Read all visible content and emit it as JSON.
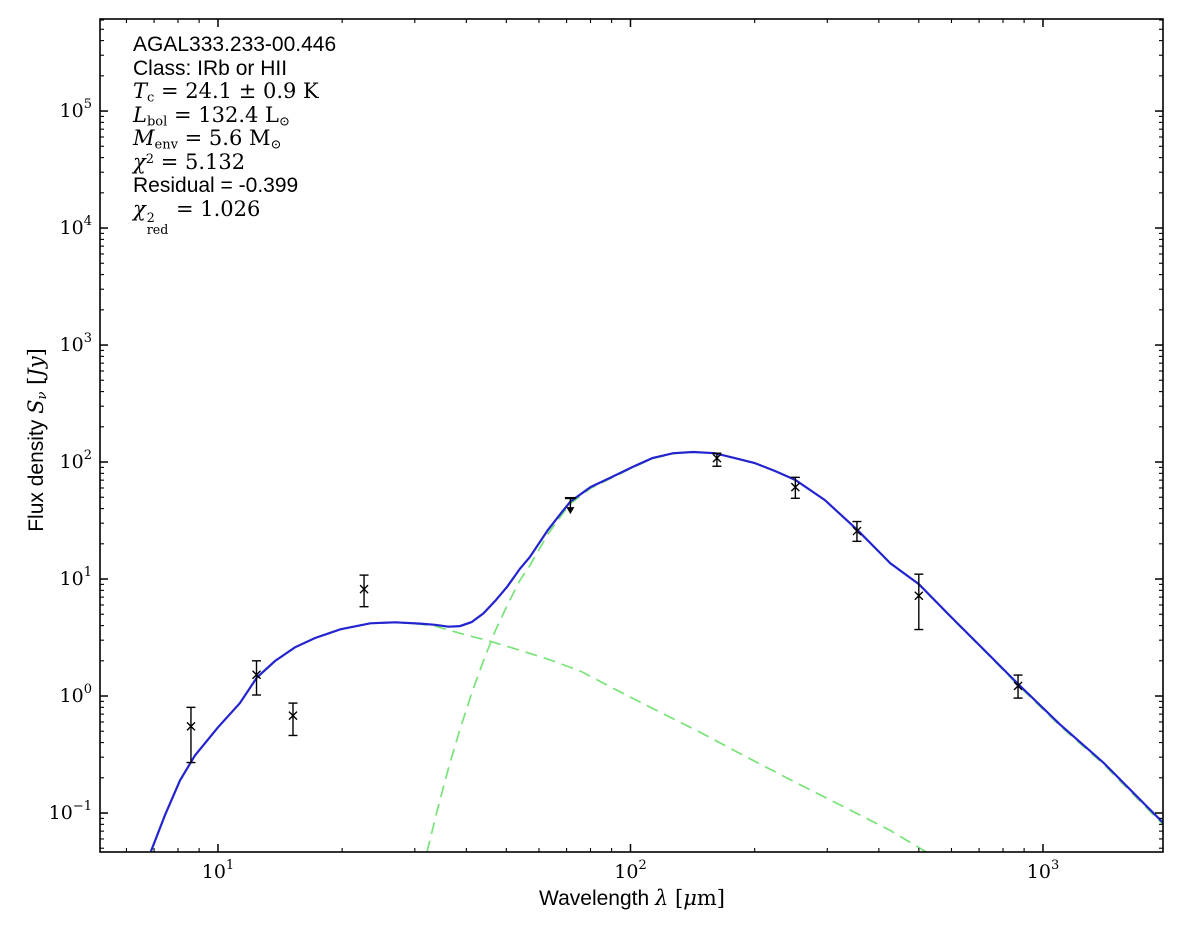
{
  "annotation": {
    "source": "AGAL333.233-00.446",
    "class_line": "Class: IRb or HII",
    "tc": {
      "sym": "T",
      "sub": "c",
      "rest": " = 24.1 ± 0.9 K"
    },
    "lbol": {
      "sym": "L",
      "sub": "bol",
      "rest": " = 132.4 L",
      "rest_sub": "⊙"
    },
    "menv": {
      "sym": "M",
      "sub": "env",
      "rest": " = 5.6 M",
      "rest_sub": "⊙"
    },
    "chi2": {
      "sym": "χ",
      "sup": "2",
      "rest": " = 5.132"
    },
    "residual": "Residual = -0.399",
    "chi2red": {
      "sym": "χ",
      "sup": "2",
      "sub": "red",
      "rest": " = 1.026"
    }
  },
  "axes": {
    "xlabel": {
      "prefix": "Wavelength ",
      "sym": "λ",
      "open": " [",
      "mu": "μ",
      "rest": "m]"
    },
    "ylabel": {
      "prefix": "Flux density ",
      "sym": "S",
      "sym_sub": "ν",
      "open": " [",
      "unit": "Jy",
      "close": "]"
    }
  },
  "chart_data": {
    "type": "line",
    "title": "",
    "xlabel": "Wavelength λ [μm]",
    "ylabel": "Flux density S_ν [Jy]",
    "xscale": "log",
    "yscale": "log",
    "xlim": [
      5.176,
      1954
    ],
    "ylim": [
      0.04642,
      612000
    ],
    "grid": false,
    "legend": "none",
    "x_tick_exponents": [
      1,
      2,
      3
    ],
    "y_tick_exponents": [
      -1,
      0,
      1,
      2,
      3,
      4,
      5
    ],
    "colors": {
      "total": "#2323cf",
      "component": "#79e279",
      "data": "#000000",
      "axis": "#000000"
    },
    "series": [
      {
        "name": "total-model",
        "style": "solid",
        "color": "#2323cf",
        "points": [
          [
            6.86,
            0.046
          ],
          [
            7.44,
            0.096
          ],
          [
            8.09,
            0.19
          ],
          [
            8.79,
            0.31
          ],
          [
            10,
            0.54
          ],
          [
            11.3,
            0.87
          ],
          [
            12.43,
            1.44
          ],
          [
            13.75,
            1.99
          ],
          [
            15.37,
            2.61
          ],
          [
            17.2,
            3.13
          ],
          [
            19.8,
            3.72
          ],
          [
            23.4,
            4.18
          ],
          [
            26.9,
            4.27
          ],
          [
            30.9,
            4.16
          ],
          [
            33.6,
            4.06
          ],
          [
            36.2,
            3.91
          ],
          [
            38.6,
            3.96
          ],
          [
            41.2,
            4.28
          ],
          [
            44,
            5.08
          ],
          [
            47,
            6.5
          ],
          [
            50.3,
            8.65
          ],
          [
            54,
            12.3
          ],
          [
            57,
            15.4
          ],
          [
            63,
            26.1
          ],
          [
            68,
            36.9
          ],
          [
            71.5,
            45.9
          ],
          [
            80,
            61.1
          ],
          [
            90,
            74.4
          ],
          [
            101,
            90.5
          ],
          [
            113,
            108.1
          ],
          [
            127,
            119
          ],
          [
            142,
            121.9
          ],
          [
            160,
            119
          ],
          [
            179,
            108.1
          ],
          [
            200,
            98.1
          ],
          [
            224,
            83.8
          ],
          [
            251,
            70.2
          ],
          [
            296,
            47.3
          ],
          [
            355,
            26.2
          ],
          [
            427,
            13.6
          ],
          [
            500,
            9.05
          ],
          [
            600,
            4.7
          ],
          [
            730,
            2.36
          ],
          [
            870,
            1.27
          ],
          [
            1100,
            0.57
          ],
          [
            1400,
            0.27
          ],
          [
            1965,
            0.081
          ]
        ]
      },
      {
        "name": "cold-component",
        "style": "dashed",
        "color": "#79e279",
        "points": [
          [
            32.1,
            0.046
          ],
          [
            34,
            0.105
          ],
          [
            36.2,
            0.24
          ],
          [
            38.6,
            0.52
          ],
          [
            41.2,
            1.05
          ],
          [
            44,
            2.0
          ],
          [
            47,
            3.6
          ],
          [
            50.3,
            6.0
          ],
          [
            54,
            9.8
          ],
          [
            57,
            13
          ],
          [
            63,
            24
          ],
          [
            68,
            35
          ],
          [
            71.5,
            44
          ],
          [
            80,
            59.5
          ],
          [
            90,
            73
          ],
          [
            101,
            89.5
          ],
          [
            113,
            107
          ],
          [
            127,
            118
          ],
          [
            142,
            121.4
          ],
          [
            160,
            118.6
          ],
          [
            179,
            107.7
          ],
          [
            200,
            97.8
          ],
          [
            224,
            83.6
          ],
          [
            251,
            70
          ],
          [
            296,
            47.2
          ],
          [
            355,
            26.1
          ],
          [
            427,
            13.5
          ],
          [
            500,
            9.0
          ],
          [
            600,
            4.65
          ],
          [
            730,
            2.33
          ],
          [
            870,
            1.24
          ],
          [
            1100,
            0.555
          ],
          [
            1400,
            0.263
          ],
          [
            1965,
            0.078
          ]
        ]
      },
      {
        "name": "warm-component",
        "style": "dashed",
        "color": "#79e279",
        "points": [
          [
            6.86,
            0.046
          ],
          [
            7.44,
            0.096
          ],
          [
            8.09,
            0.19
          ],
          [
            8.79,
            0.31
          ],
          [
            10,
            0.54
          ],
          [
            11.3,
            0.87
          ],
          [
            12.43,
            1.44
          ],
          [
            13.75,
            1.99
          ],
          [
            15.37,
            2.61
          ],
          [
            17.2,
            3.13
          ],
          [
            19.8,
            3.72
          ],
          [
            23.4,
            4.18
          ],
          [
            26.9,
            4.27
          ],
          [
            30.9,
            4.12
          ],
          [
            33.6,
            3.96
          ],
          [
            38.7,
            3.43
          ],
          [
            45.6,
            2.94
          ],
          [
            54,
            2.46
          ],
          [
            63.9,
            2.03
          ],
          [
            75.5,
            1.64
          ],
          [
            87.7,
            1.24
          ],
          [
            111,
            0.81
          ],
          [
            147.5,
            0.49
          ],
          [
            195,
            0.29
          ],
          [
            257.5,
            0.175
          ],
          [
            339,
            0.107
          ],
          [
            426,
            0.071
          ],
          [
            524,
            0.046
          ]
        ]
      }
    ],
    "data_points": [
      {
        "lambda": 8.6,
        "flux": 0.55,
        "lo": 0.27,
        "hi": 0.8
      },
      {
        "lambda": 12.4,
        "flux": 1.52,
        "lo": 1.02,
        "hi": 2.0
      },
      {
        "lambda": 15.2,
        "flux": 0.68,
        "lo": 0.46,
        "hi": 0.87
      },
      {
        "lambda": 22.6,
        "flux": 8.2,
        "lo": 5.8,
        "hi": 10.8
      },
      {
        "lambda": 71.5,
        "flux": 49.2,
        "lo": 36.6,
        "hi": 49.2,
        "upper_limit": true
      },
      {
        "lambda": 162,
        "flux": 108,
        "lo": 92,
        "hi": 119
      },
      {
        "lambda": 251,
        "flux": 61,
        "lo": 49,
        "hi": 74
      },
      {
        "lambda": 354,
        "flux": 25.7,
        "lo": 21,
        "hi": 31
      },
      {
        "lambda": 500,
        "flux": 7.2,
        "lo": 3.7,
        "hi": 11
      },
      {
        "lambda": 870,
        "flux": 1.22,
        "lo": 0.96,
        "hi": 1.51
      }
    ]
  }
}
